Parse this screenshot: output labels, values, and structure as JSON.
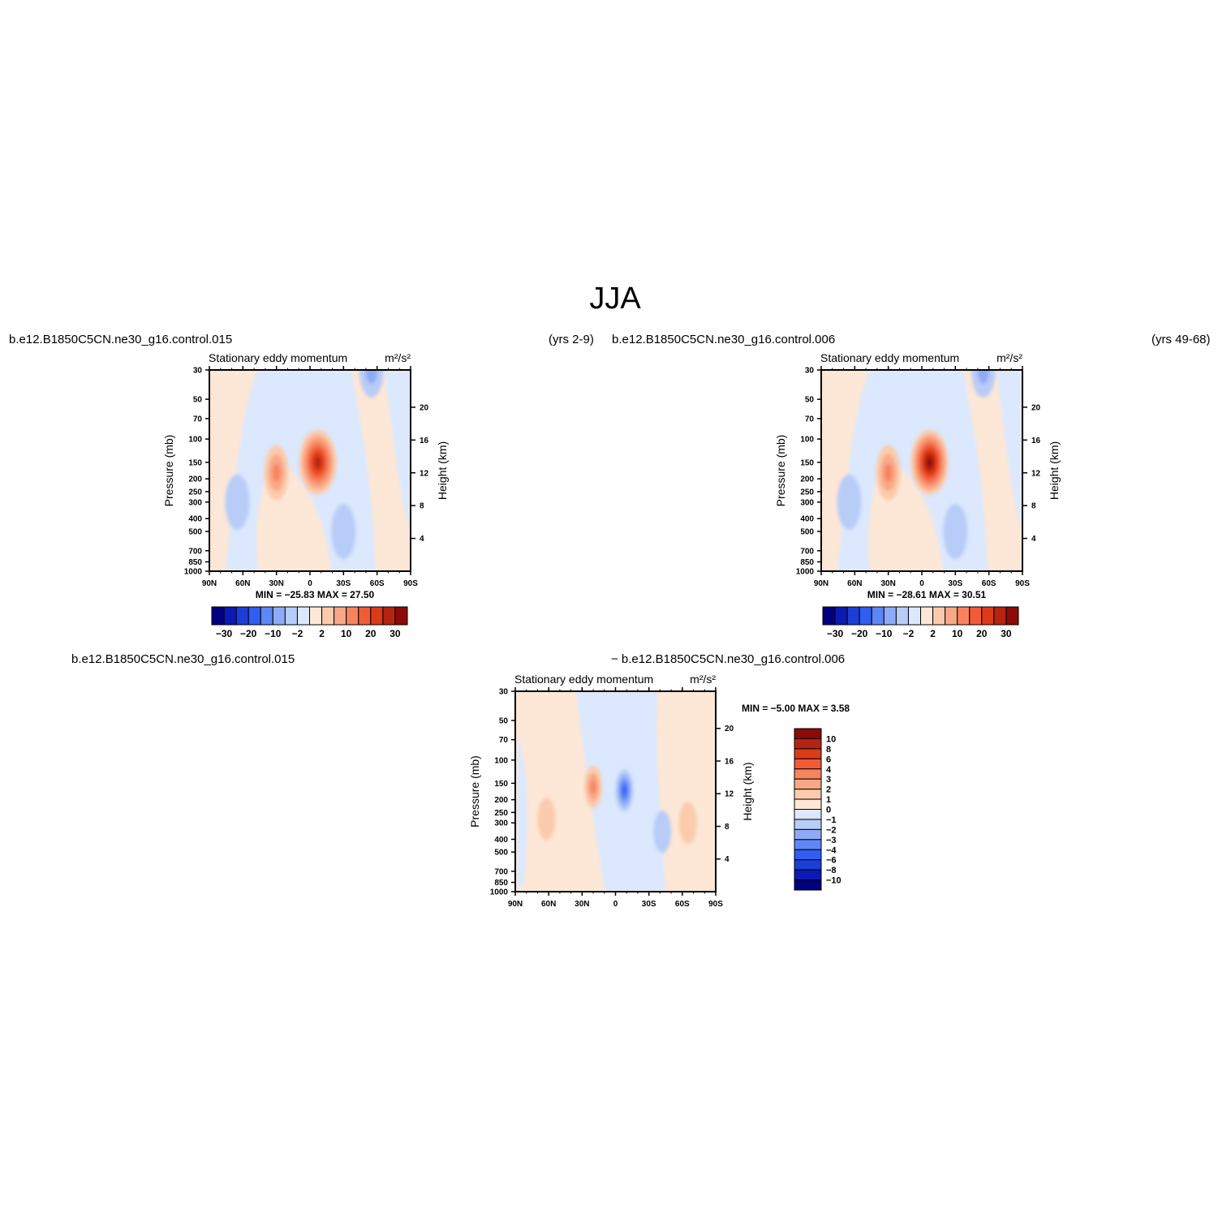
{
  "page_title": "JJA",
  "panels": [
    {
      "id": "top-left",
      "case_label": "b.e12.B1850C5CN.ne30_g16.control.015",
      "years_label": "(yrs 2-9)",
      "title": "Stationary eddy momentum",
      "units": "m²/s²",
      "min_max": "MIN =  −25.83   MAX =   27.50",
      "colorbar_labels": [
        "−30",
        "−20",
        "−10",
        "−2",
        "2",
        "10",
        "20",
        "30"
      ]
    },
    {
      "id": "top-right",
      "case_label": "b.e12.B1850C5CN.ne30_g16.control.006",
      "years_label": "(yrs 49-68)",
      "title": "Stationary eddy momentum",
      "units": "m²/s²",
      "min_max": "MIN =  −28.61   MAX =   30.51",
      "colorbar_labels": [
        "−30",
        "−20",
        "−10",
        "−2",
        "2",
        "10",
        "20",
        "30"
      ]
    },
    {
      "id": "bottom-diff",
      "case_label_a": "b.e12.B1850C5CN.ne30_g16.control.015",
      "case_label_b": "− b.e12.B1850C5CN.ne30_g16.control.006",
      "title": "Stationary eddy momentum",
      "units": "m²/s²",
      "min_max": "MIN =    −5.00   MAX =     3.58",
      "colorbar_labels": [
        "10",
        "8",
        "6",
        "4",
        "3",
        "2",
        "1",
        "0",
        "−1",
        "−2",
        "−3",
        "−4",
        "−6",
        "−8",
        "−10"
      ]
    }
  ],
  "axes": {
    "y_left_label": "Pressure (mb)",
    "y_right_label": "Height (km)",
    "pressure_ticks": [
      "30",
      "50",
      "70",
      "100",
      "150",
      "200",
      "250",
      "300",
      "400",
      "500",
      "700",
      "850",
      "1000"
    ],
    "height_ticks": [
      "20",
      "16",
      "12",
      "8",
      "4"
    ],
    "lat_ticks": [
      "90N",
      "60N",
      "30N",
      "0",
      "30S",
      "60S",
      "90S"
    ]
  },
  "colors": {
    "main_scale": [
      "#00007f",
      "#0c1ab4",
      "#1b3fd6",
      "#2f5ef0",
      "#5d86f7",
      "#8fabf7",
      "#b8ccf8",
      "#dbe8fd",
      "#fde7d6",
      "#fbcbac",
      "#f9a887",
      "#f7845f",
      "#f15c36",
      "#dc3a18",
      "#b52410",
      "#8c0a08"
    ],
    "diff_scale": [
      "#8c0a08",
      "#b52410",
      "#dc3a18",
      "#f15c36",
      "#f7845f",
      "#f9a887",
      "#fbcbac",
      "#fde7d6",
      "#dbe8fd",
      "#b8ccf8",
      "#8fabf7",
      "#5d86f7",
      "#2f5ef0",
      "#1b3fd6",
      "#0c1ab4",
      "#00007f"
    ]
  },
  "chart_data": [
    {
      "type": "heatmap",
      "title": "Stationary eddy momentum",
      "units": "m²/s²",
      "xlabel": "",
      "ylabel": "Pressure (mb)",
      "y2label": "Height (km)",
      "x": [
        "90N",
        "60N",
        "30N",
        "0",
        "30S",
        "60S",
        "90S"
      ],
      "ylim": [
        1000,
        30
      ],
      "min": -25.83,
      "max": 27.5,
      "levels": [
        -30,
        -25,
        -20,
        -15,
        -10,
        -5,
        -2,
        0,
        2,
        5,
        10,
        15,
        20,
        25,
        30
      ],
      "features": [
        {
          "lat": -7,
          "p": 150,
          "value": 27.5
        },
        {
          "lat": 30,
          "p": 180,
          "value": 12
        },
        {
          "lat": -55,
          "p": 30,
          "value": -8
        },
        {
          "lat": 65,
          "p": 300,
          "value": -3
        },
        {
          "lat": -30,
          "p": 500,
          "value": -4
        }
      ]
    },
    {
      "type": "heatmap",
      "title": "Stationary eddy momentum",
      "units": "m²/s²",
      "xlabel": "",
      "ylabel": "Pressure (mb)",
      "y2label": "Height (km)",
      "x": [
        "90N",
        "60N",
        "30N",
        "0",
        "30S",
        "60S",
        "90S"
      ],
      "ylim": [
        1000,
        30
      ],
      "min": -28.61,
      "max": 30.51,
      "levels": [
        -30,
        -25,
        -20,
        -15,
        -10,
        -5,
        -2,
        0,
        2,
        5,
        10,
        15,
        20,
        25,
        30
      ],
      "features": [
        {
          "lat": -7,
          "p": 150,
          "value": 30.5
        },
        {
          "lat": 30,
          "p": 180,
          "value": 12
        },
        {
          "lat": -55,
          "p": 30,
          "value": -8
        },
        {
          "lat": 65,
          "p": 300,
          "value": -5
        },
        {
          "lat": -30,
          "p": 500,
          "value": -4
        }
      ]
    },
    {
      "type": "heatmap",
      "title": "Stationary eddy momentum",
      "units": "m²/s²",
      "xlabel": "",
      "ylabel": "Pressure (mb)",
      "y2label": "Height (km)",
      "x": [
        "90N",
        "60N",
        "30N",
        "0",
        "30S",
        "60S",
        "90S"
      ],
      "ylim": [
        1000,
        30
      ],
      "min": -5.0,
      "max": 3.58,
      "levels": [
        -10,
        -8,
        -6,
        -4,
        -3,
        -2,
        -1,
        0,
        1,
        2,
        3,
        4,
        6,
        8,
        10
      ],
      "features": [
        {
          "lat": 20,
          "p": 160,
          "value": 3.58
        },
        {
          "lat": -8,
          "p": 170,
          "value": -5.0
        },
        {
          "lat": 62,
          "p": 280,
          "value": 1.5
        },
        {
          "lat": -42,
          "p": 350,
          "value": -1.5
        },
        {
          "lat": -65,
          "p": 300,
          "value": 1.2
        }
      ]
    }
  ]
}
